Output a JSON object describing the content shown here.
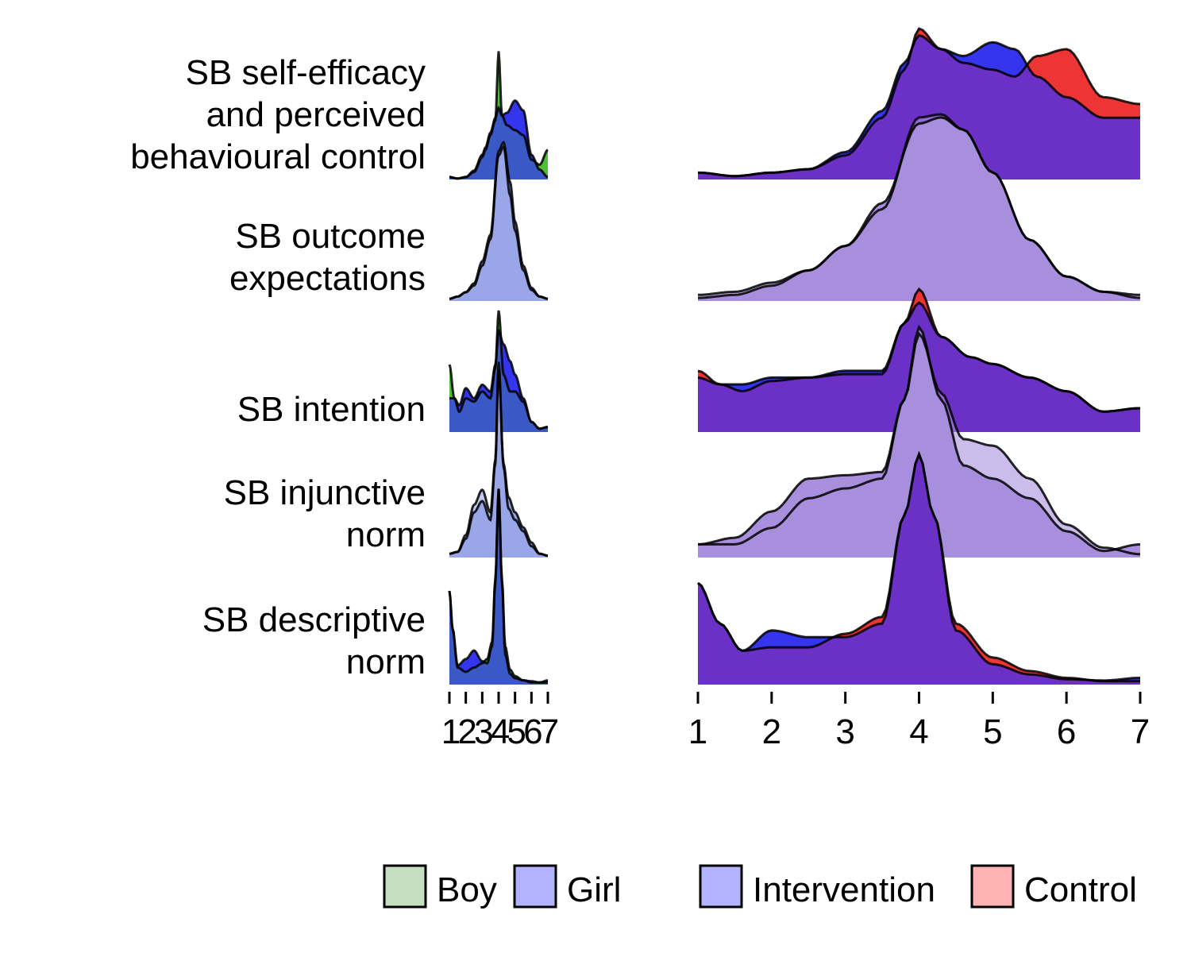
{
  "chart_data": [
    {
      "type": "ridgeline",
      "grouping": "sex",
      "x_ticks": [
        1,
        2,
        3,
        4,
        5,
        6,
        7
      ],
      "xlim": [
        1,
        7
      ],
      "rows": [
        {
          "label": [
            "SB self-efficacy",
            "and perceived",
            "behavioural control"
          ],
          "series": [
            {
              "name": "Boy",
              "x": [
                1,
                1.5,
                2,
                2.5,
                3,
                3.2,
                3.5,
                3.8,
                4,
                4.2,
                4.5,
                5,
                5.5,
                6,
                6.5,
                7
              ],
              "y": [
                0.05,
                0.02,
                0.05,
                0.15,
                0.45,
                0.6,
                0.9,
                1.2,
                2.6,
                1.3,
                1.1,
                1.0,
                0.9,
                0.4,
                0.3,
                0.6
              ]
            },
            {
              "name": "Girl",
              "x": [
                1,
                1.5,
                2,
                2.5,
                3,
                3.2,
                3.5,
                3.8,
                4,
                4.2,
                4.5,
                5,
                5.5,
                6,
                6.5,
                7
              ],
              "y": [
                0.05,
                0.02,
                0.05,
                0.18,
                0.5,
                0.65,
                0.95,
                1.25,
                1.45,
                1.3,
                1.35,
                1.6,
                1.4,
                0.5,
                0.2,
                0.05
              ]
            }
          ]
        },
        {
          "label": [
            "SB outcome",
            "expectations"
          ],
          "series": [
            {
              "name": "Boy",
              "x": [
                1,
                1.5,
                2,
                2.5,
                3,
                3.5,
                4,
                4.3,
                4.7,
                5,
                5.5,
                6,
                6.5,
                7
              ],
              "y": [
                0.05,
                0.1,
                0.2,
                0.4,
                0.9,
                1.5,
                3.4,
                3.6,
                2.7,
                1.8,
                0.8,
                0.3,
                0.1,
                0.05
              ]
            },
            {
              "name": "Girl",
              "x": [
                1,
                1.5,
                2,
                2.5,
                3,
                3.5,
                4,
                4.3,
                4.7,
                5,
                5.5,
                6,
                6.5,
                7
              ],
              "y": [
                0.05,
                0.1,
                0.2,
                0.35,
                0.8,
                1.4,
                3.3,
                3.5,
                2.4,
                1.6,
                0.7,
                0.25,
                0.1,
                0.05
              ]
            }
          ]
        },
        {
          "label": [
            "SB intention"
          ],
          "series": [
            {
              "name": "Boy",
              "x": [
                1,
                1.3,
                1.6,
                2,
                2.5,
                3,
                3.5,
                3.8,
                4,
                4.3,
                4.7,
                5,
                5.5,
                6,
                6.5,
                7
              ],
              "y": [
                2.0,
                1.0,
                0.6,
                1.0,
                0.9,
                1.2,
                1.0,
                1.9,
                3.6,
                1.7,
                1.2,
                1.2,
                0.9,
                0.3,
                0.1,
                0.15
              ]
            },
            {
              "name": "Girl",
              "x": [
                1,
                1.3,
                1.6,
                2,
                2.5,
                3,
                3.5,
                3.8,
                4,
                4.3,
                4.7,
                5,
                5.5,
                6,
                6.5,
                7
              ],
              "y": [
                1.0,
                1.0,
                0.8,
                1.3,
                1.0,
                1.4,
                1.2,
                2.0,
                3.0,
                2.6,
                2.1,
                1.7,
                1.0,
                0.3,
                0.1,
                0.15
              ]
            }
          ]
        },
        {
          "label": [
            "SB injunctive",
            "norm"
          ],
          "series": [
            {
              "name": "Boy",
              "x": [
                1,
                1.5,
                2,
                2.5,
                3,
                3.5,
                3.8,
                4,
                4.3,
                4.6,
                5,
                5.5,
                6,
                6.5,
                7
              ],
              "y": [
                0.1,
                0.15,
                0.5,
                1.2,
                1.5,
                1.0,
                2.5,
                5.0,
                2.5,
                1.6,
                1.2,
                0.8,
                0.4,
                0.1,
                0.05
              ]
            },
            {
              "name": "Girl",
              "x": [
                1,
                1.5,
                2,
                2.5,
                3,
                3.5,
                3.8,
                4,
                4.3,
                4.6,
                5,
                5.5,
                6,
                6.5,
                7
              ],
              "y": [
                0.1,
                0.15,
                0.6,
                1.4,
                1.8,
                1.2,
                2.6,
                5.2,
                2.4,
                1.3,
                1.0,
                0.7,
                0.3,
                0.1,
                0.05
              ]
            }
          ]
        },
        {
          "label": [
            "SB descriptive",
            "norm"
          ],
          "series": [
            {
              "name": "Boy",
              "x": [
                1,
                1.2,
                1.5,
                2,
                2.5,
                3,
                3.3,
                3.6,
                3.8,
                4,
                4.2,
                4.4,
                4.7,
                5,
                5.5,
                6,
                6.5,
                7
              ],
              "y": [
                2.2,
                1.3,
                0.4,
                0.3,
                0.4,
                0.5,
                0.6,
                1.0,
                2.5,
                4.6,
                2.5,
                0.9,
                0.35,
                0.2,
                0.1,
                0.08,
                0.05,
                0.05
              ]
            },
            {
              "name": "Girl",
              "x": [
                1,
                1.2,
                1.5,
                2,
                2.5,
                3,
                3.3,
                3.6,
                3.8,
                4,
                4.2,
                4.4,
                4.7,
                5,
                5.5,
                6,
                6.5,
                7
              ],
              "y": [
                2.2,
                1.3,
                0.45,
                0.6,
                0.8,
                0.55,
                0.5,
                0.9,
                2.4,
                4.6,
                2.4,
                0.7,
                0.25,
                0.15,
                0.1,
                0.05,
                0.05,
                0.1
              ]
            }
          ]
        }
      ]
    },
    {
      "type": "ridgeline",
      "grouping": "condition",
      "x_ticks": [
        1,
        2,
        3,
        4,
        5,
        6,
        7
      ],
      "xlim": [
        1,
        7
      ],
      "rows": [
        {
          "label": [
            "SB self-efficacy",
            "and perceived",
            "behavioural control"
          ],
          "series": [
            {
              "name": "Intervention",
              "x": [
                1,
                1.5,
                2,
                2.5,
                3,
                3.5,
                3.8,
                4,
                4.3,
                4.6,
                5,
                5.3,
                5.6,
                6,
                6.5,
                7
              ],
              "y": [
                0.1,
                0.05,
                0.1,
                0.15,
                0.4,
                1.0,
                1.7,
                2.1,
                1.9,
                1.8,
                2.0,
                1.9,
                1.5,
                1.2,
                0.9,
                0.9
              ]
            },
            {
              "name": "Control",
              "x": [
                1,
                1.5,
                2,
                2.5,
                3,
                3.5,
                3.8,
                4,
                4.3,
                4.6,
                5,
                5.3,
                5.6,
                6,
                6.5,
                7
              ],
              "y": [
                0.1,
                0.05,
                0.1,
                0.15,
                0.35,
                0.9,
                1.6,
                2.2,
                1.9,
                1.7,
                1.6,
                1.5,
                1.8,
                1.9,
                1.2,
                1.1
              ]
            }
          ]
        },
        {
          "label": [
            "SB outcome",
            "expectations"
          ],
          "series": [
            {
              "name": "Intervention",
              "x": [
                1,
                1.5,
                2,
                2.5,
                3,
                3.5,
                4,
                4.3,
                4.6,
                5,
                5.5,
                6,
                6.5,
                7
              ],
              "y": [
                0.05,
                0.1,
                0.25,
                0.5,
                0.9,
                1.6,
                2.9,
                3.0,
                2.8,
                2.1,
                1.0,
                0.4,
                0.15,
                0.05
              ]
            },
            {
              "name": "Control",
              "x": [
                1,
                1.5,
                2,
                2.5,
                3,
                3.5,
                4,
                4.3,
                4.6,
                5,
                5.5,
                6,
                6.5,
                7
              ],
              "y": [
                0.1,
                0.15,
                0.3,
                0.5,
                0.9,
                1.5,
                3.0,
                3.05,
                2.8,
                2.1,
                1.0,
                0.4,
                0.15,
                0.1
              ]
            }
          ]
        },
        {
          "label": [
            "SB intention"
          ],
          "series": [
            {
              "name": "Intervention",
              "x": [
                1,
                1.3,
                1.6,
                2,
                2.5,
                3,
                3.5,
                3.8,
                4,
                4.3,
                4.7,
                5,
                5.5,
                6,
                6.5,
                7
              ],
              "y": [
                0.8,
                0.7,
                0.7,
                0.8,
                0.8,
                0.9,
                0.9,
                1.6,
                1.9,
                1.4,
                1.1,
                1.0,
                0.8,
                0.6,
                0.3,
                0.35
              ]
            },
            {
              "name": "Control",
              "x": [
                1,
                1.3,
                1.6,
                2,
                2.5,
                3,
                3.5,
                3.8,
                4,
                4.3,
                4.7,
                5,
                5.5,
                6,
                6.5,
                7
              ],
              "y": [
                0.9,
                0.7,
                0.6,
                0.75,
                0.8,
                0.85,
                0.85,
                1.6,
                2.1,
                1.4,
                1.1,
                1.0,
                0.8,
                0.6,
                0.3,
                0.35
              ]
            }
          ]
        },
        {
          "label": [
            "SB injunctive",
            "norm"
          ],
          "series": [
            {
              "name": "Intervention",
              "x": [
                1,
                1.5,
                2,
                2.5,
                3,
                3.5,
                3.8,
                4,
                4.3,
                4.6,
                5,
                5.5,
                6,
                6.5,
                7
              ],
              "y": [
                0.2,
                0.3,
                0.7,
                1.2,
                1.25,
                1.3,
                2.4,
                3.5,
                2.4,
                1.4,
                1.2,
                0.9,
                0.4,
                0.1,
                0.2
              ]
            },
            {
              "name": "Control",
              "x": [
                1,
                1.5,
                2,
                2.5,
                3,
                3.5,
                3.8,
                4,
                4.3,
                4.6,
                5,
                5.5,
                6,
                6.5,
                7
              ],
              "y": [
                0.2,
                0.2,
                0.45,
                0.9,
                1.05,
                1.2,
                2.4,
                3.4,
                2.5,
                1.8,
                1.7,
                1.2,
                0.5,
                0.15,
                0.05
              ]
            }
          ]
        },
        {
          "label": [
            "SB descriptive",
            "norm"
          ],
          "series": [
            {
              "name": "Intervention",
              "x": [
                1,
                1.3,
                1.6,
                2,
                2.5,
                3,
                3.5,
                3.8,
                4,
                4.2,
                4.5,
                5,
                5.5,
                6,
                6.5,
                7
              ],
              "y": [
                1.5,
                0.9,
                0.5,
                0.8,
                0.7,
                0.7,
                0.9,
                2.5,
                3.4,
                2.5,
                0.8,
                0.3,
                0.15,
                0.08,
                0.06,
                0.1
              ]
            },
            {
              "name": "Control",
              "x": [
                1,
                1.3,
                1.6,
                2,
                2.5,
                3,
                3.5,
                3.8,
                4,
                4.2,
                4.5,
                5,
                5.5,
                6,
                6.5,
                7
              ],
              "y": [
                1.5,
                0.9,
                0.5,
                0.55,
                0.55,
                0.75,
                1.0,
                2.5,
                3.4,
                2.5,
                0.9,
                0.4,
                0.2,
                0.1,
                0.05,
                0.05
              ]
            }
          ]
        }
      ]
    }
  ],
  "legend": {
    "items": [
      {
        "label": "Boy",
        "color": "#c6dfc0"
      },
      {
        "label": "Girl",
        "color": "#b3b3ff"
      },
      {
        "label": "Intervention",
        "color": "#b3b3ff"
      },
      {
        "label": "Control",
        "color": "#ffb3b3"
      }
    ]
  },
  "colors": {
    "boy": "#4fbf3a",
    "girl": "#3535ee",
    "intervention": "#3535ee",
    "control": "#ee3535",
    "dark_row": "#6b30c6",
    "light_row": "#a890de"
  }
}
